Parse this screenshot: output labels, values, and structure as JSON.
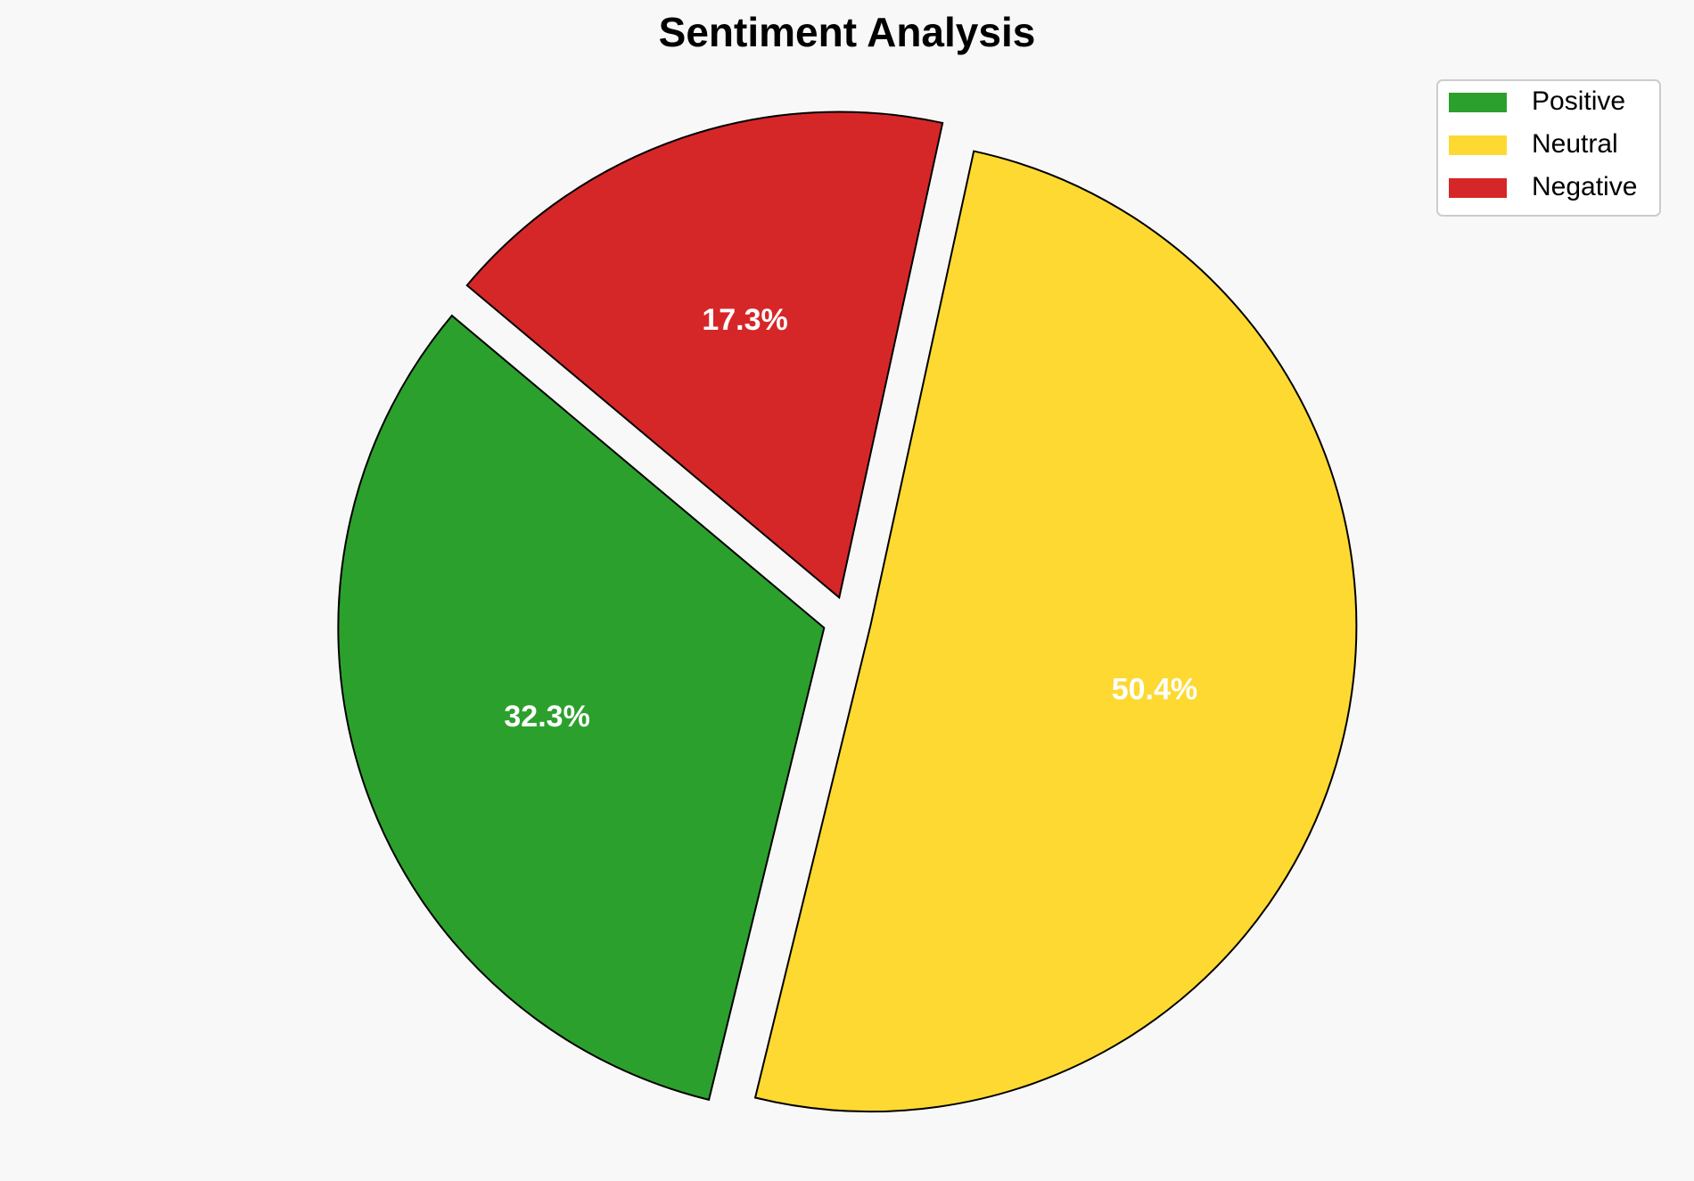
{
  "chart_data": {
    "type": "pie",
    "title": "Sentiment Analysis",
    "categories": [
      "Positive",
      "Neutral",
      "Negative"
    ],
    "values": [
      32.3,
      50.4,
      17.3
    ],
    "value_labels": [
      "32.3%",
      "50.4%",
      "17.3%"
    ],
    "colors": [
      "#2ca02c",
      "#fdd932",
      "#d62728"
    ],
    "legend": "upper right"
  }
}
